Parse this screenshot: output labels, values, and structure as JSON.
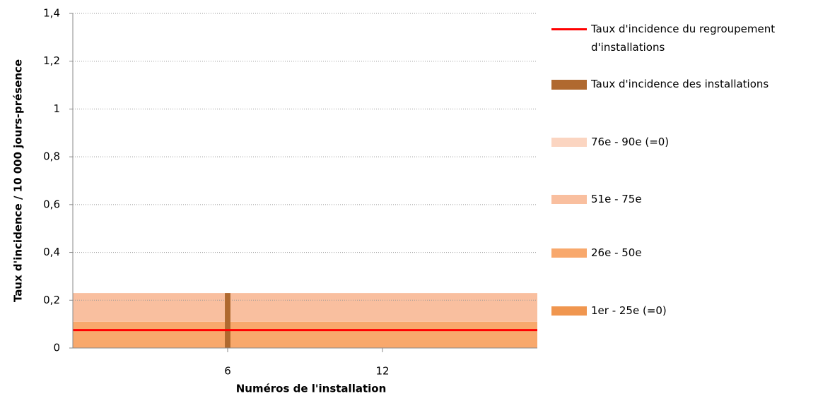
{
  "chart_data": {
    "type": "bar",
    "x_label": "Numéros de l'installation",
    "y_label": "Taux d'incidence / 10 000 jours-présence",
    "xlim": [
      0,
      18
    ],
    "xticks": [
      6,
      12
    ],
    "ylim": [
      0,
      1.4
    ],
    "yticks": [
      0,
      {
        "value": 0.2,
        "label": "0,2"
      },
      {
        "value": 0.4,
        "label": "0,4"
      },
      {
        "value": 0.6,
        "label": "0,6"
      },
      {
        "value": 0.8,
        "label": "0,8"
      },
      1,
      {
        "value": 1.2,
        "label": "1,2"
      },
      {
        "value": 1.4,
        "label": "1,4"
      }
    ],
    "grid": true,
    "legend": "right",
    "series": [
      {
        "name": "1er - 25e (=0)",
        "type": "area",
        "stacked": true,
        "color": "#f0964f",
        "values": [
          0
        ]
      },
      {
        "name": "26e - 50e",
        "type": "area",
        "stacked": true,
        "color": "#f8a86c",
        "values": [
          0.11
        ]
      },
      {
        "name": "51e - 75e",
        "type": "area",
        "stacked": true,
        "color": "#f9bf9f",
        "values": [
          0.12
        ]
      },
      {
        "name": "76e - 90e (=0)",
        "type": "area",
        "stacked": true,
        "color": "#fbd5c1",
        "values": [
          0
        ]
      },
      {
        "name": "Taux d'incidence des installations",
        "type": "bar",
        "color": "#b0692f",
        "x": [
          6
        ],
        "values": [
          0.23
        ]
      },
      {
        "name": "Taux d'incidence du regroupement d'installations",
        "type": "line",
        "color": "#ff0000",
        "values": [
          0.075
        ]
      }
    ]
  }
}
